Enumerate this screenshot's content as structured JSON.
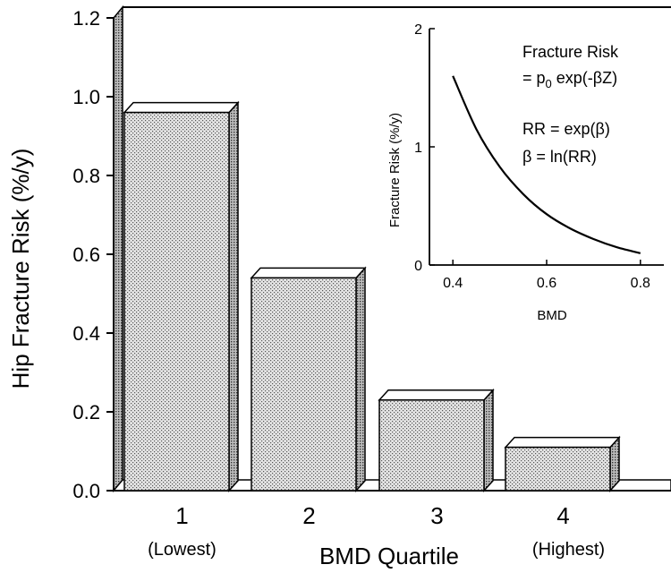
{
  "chart_data": [
    {
      "type": "bar",
      "categories": [
        "1",
        "2",
        "3",
        "4"
      ],
      "category_sublabels": [
        "(Lowest)",
        "",
        "",
        "(Highest)"
      ],
      "values": [
        0.96,
        0.54,
        0.23,
        0.11
      ],
      "xlabel": "BMD Quartile",
      "ylabel": "Hip Fracture Risk (%/y)",
      "ylim": [
        0,
        1.2
      ],
      "yticks": [
        "0.0",
        "0.2",
        "0.4",
        "0.6",
        "0.8",
        "1.0",
        "1.2"
      ],
      "ytick_values": [
        0,
        0.2,
        0.4,
        0.6,
        0.8,
        1.0,
        1.2
      ],
      "style": "3d-stippled",
      "grid": false
    },
    {
      "type": "line",
      "placement": "inset top-right",
      "x": [
        0.4,
        0.45,
        0.5,
        0.55,
        0.6,
        0.65,
        0.7,
        0.75,
        0.8
      ],
      "y": [
        1.6,
        1.15,
        0.83,
        0.6,
        0.43,
        0.31,
        0.22,
        0.15,
        0.1
      ],
      "xlabel": "BMD",
      "ylabel": "Fracture Risk (%/y)",
      "xlim": [
        0.35,
        0.85
      ],
      "ylim": [
        0,
        2
      ],
      "xticks": [
        "0.4",
        "0.6",
        "0.8"
      ],
      "xtick_values": [
        0.4,
        0.6,
        0.8
      ],
      "yticks": [
        "0",
        "1",
        "2"
      ],
      "ytick_values": [
        0,
        1,
        2
      ],
      "annotation_lines": [
        "Fracture Risk",
        "= p",
        "0",
        " exp(-βZ)",
        "RR = exp(β)",
        "β = ln(RR)"
      ]
    }
  ]
}
